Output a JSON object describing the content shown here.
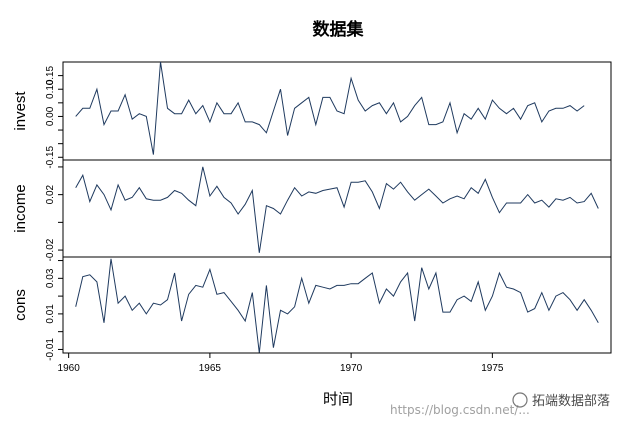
{
  "chart_data": {
    "type": "line",
    "title": "数据集",
    "xlabel": "时间",
    "x_start": 1960.25,
    "x_step": 0.25,
    "xlim": [
      1959.8,
      1979.2
    ],
    "xticks": [
      1960,
      1965,
      1970,
      1975
    ],
    "line_color": "#1f3a5f",
    "panels": [
      {
        "name": "invest",
        "ylim": [
          -0.16,
          0.2
        ],
        "yticks": [
          -0.15,
          -0.1,
          -0.05,
          0.0,
          0.05,
          0.1,
          0.15
        ],
        "ytick_labels": [
          "-0.15",
          "",
          "",
          "0.00",
          "",
          "0.10",
          "0.15"
        ],
        "values": [
          0.0,
          0.03,
          0.03,
          0.1,
          -0.03,
          0.02,
          0.02,
          0.08,
          -0.01,
          0.01,
          0.0,
          -0.14,
          0.2,
          0.03,
          0.01,
          0.01,
          0.06,
          0.01,
          0.04,
          -0.02,
          0.05,
          0.01,
          0.01,
          0.05,
          -0.02,
          -0.02,
          -0.03,
          -0.06,
          0.02,
          0.1,
          -0.07,
          0.03,
          0.05,
          0.07,
          -0.03,
          0.07,
          0.07,
          0.02,
          0.01,
          0.14,
          0.06,
          0.02,
          0.04,
          0.05,
          0.01,
          0.05,
          -0.02,
          0.0,
          0.04,
          0.07,
          -0.03,
          -0.03,
          -0.02,
          0.05,
          -0.06,
          0.01,
          -0.01,
          0.03,
          -0.01,
          0.06,
          0.03,
          0.01,
          0.03,
          -0.01,
          0.04,
          0.05,
          -0.02,
          0.02,
          0.03,
          0.03,
          0.04,
          0.02,
          0.04
        ]
      },
      {
        "name": "income",
        "ylim": [
          -0.025,
          0.045
        ],
        "yticks": [
          -0.02,
          0.0,
          0.02,
          0.04
        ],
        "ytick_labels": [
          "-0.02",
          "",
          "0.02",
          ""
        ],
        "values": [
          0.025,
          0.034,
          0.015,
          0.027,
          0.02,
          0.009,
          0.027,
          0.016,
          0.018,
          0.025,
          0.017,
          0.016,
          0.016,
          0.018,
          0.023,
          0.021,
          0.016,
          0.012,
          0.04,
          0.019,
          0.026,
          0.018,
          0.014,
          0.006,
          0.013,
          0.023,
          -0.022,
          0.012,
          0.01,
          0.006,
          0.016,
          0.025,
          0.019,
          0.022,
          0.021,
          0.023,
          0.024,
          0.025,
          0.011,
          0.029,
          0.029,
          0.03,
          0.022,
          0.01,
          0.028,
          0.024,
          0.029,
          0.022,
          0.016,
          0.02,
          0.024,
          0.019,
          0.014,
          0.017,
          0.019,
          0.017,
          0.025,
          0.021,
          0.031,
          0.018,
          0.007,
          0.014,
          0.014,
          0.014,
          0.02,
          0.014,
          0.016,
          0.011,
          0.017,
          0.016,
          0.018,
          0.014,
          0.015,
          0.021,
          0.01
        ]
      },
      {
        "name": "cons",
        "ylim": [
          -0.012,
          0.042
        ],
        "yticks": [
          -0.01,
          0.0,
          0.01,
          0.02,
          0.03,
          0.04
        ],
        "ytick_labels": [
          "-0.01",
          "",
          "0.01",
          "",
          "0.03",
          ""
        ],
        "values": [
          0.014,
          0.031,
          0.032,
          0.028,
          0.005,
          0.041,
          0.016,
          0.02,
          0.012,
          0.016,
          0.01,
          0.016,
          0.015,
          0.018,
          0.033,
          0.006,
          0.021,
          0.026,
          0.025,
          0.035,
          0.021,
          0.022,
          0.017,
          0.012,
          0.006,
          0.022,
          -0.012,
          0.026,
          -0.009,
          0.012,
          0.01,
          0.014,
          0.03,
          0.016,
          0.026,
          0.025,
          0.024,
          0.026,
          0.026,
          0.027,
          0.027,
          0.03,
          0.033,
          0.016,
          0.024,
          0.02,
          0.028,
          0.033,
          0.006,
          0.036,
          0.024,
          0.033,
          0.011,
          0.011,
          0.018,
          0.02,
          0.017,
          0.028,
          0.012,
          0.02,
          0.033,
          0.025,
          0.024,
          0.022,
          0.011,
          0.013,
          0.022,
          0.012,
          0.02,
          0.022,
          0.018,
          0.012,
          0.018,
          0.012,
          0.005
        ]
      }
    ]
  },
  "watermark": {
    "url": "https://blog.csdn.net/...",
    "brand": "拓端数据部落"
  }
}
